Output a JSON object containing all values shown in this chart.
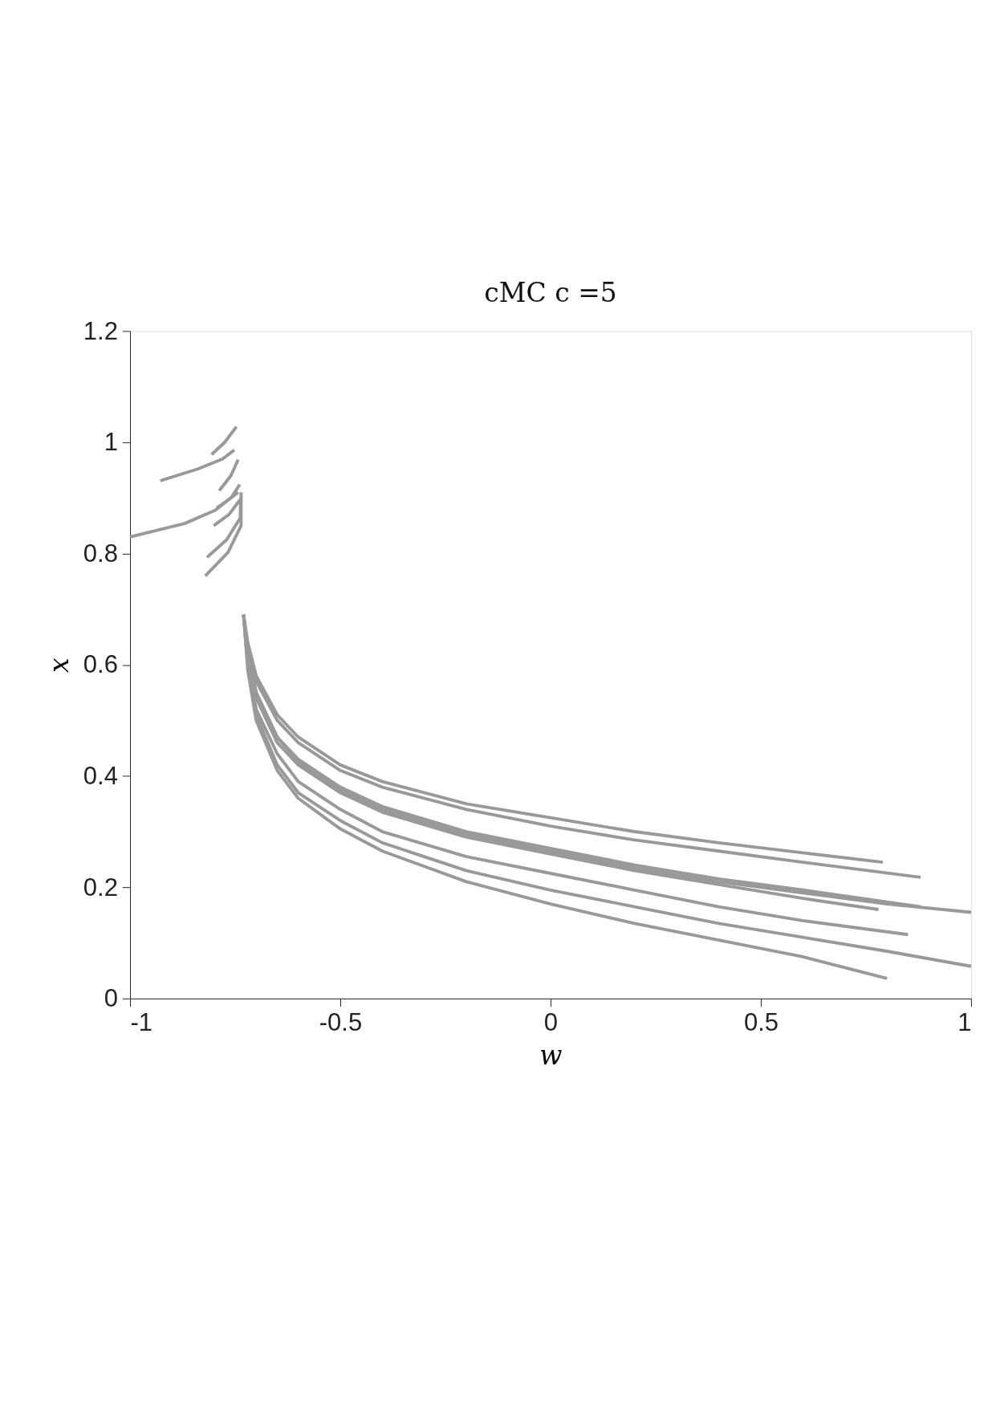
{
  "chart_data": {
    "type": "line",
    "title": "cMC c =5",
    "xlabel": "w",
    "ylabel": "x",
    "xlim": [
      -1,
      1
    ],
    "xticks": [
      -1,
      -0.5,
      0,
      0.5,
      1
    ],
    "ylim": [
      0,
      1.2
    ],
    "yticks": [
      0,
      0.2,
      0.4,
      0.6,
      0.8,
      1,
      1.2
    ],
    "grid": false,
    "legend": false,
    "line_style": "solid",
    "marker": "none",
    "series": [
      {
        "color": "#999999",
        "x": [
          -0.806,
          -0.775,
          -0.747
        ],
        "values": [
          0.978,
          1.0,
          1.028
        ]
      },
      {
        "color": "#999999",
        "x": [
          -0.928,
          -0.839,
          -0.78,
          -0.752
        ],
        "values": [
          0.931,
          0.952,
          0.97,
          0.986
        ]
      },
      {
        "color": "#999999",
        "x": [
          -1.0,
          -0.87,
          -0.797,
          -0.743
        ],
        "values": [
          0.83,
          0.854,
          0.878,
          0.91
        ]
      },
      {
        "color": "#999999",
        "x": [
          -0.788,
          -0.76,
          -0.743
        ],
        "values": [
          0.913,
          0.94,
          0.969
        ]
      },
      {
        "color": "#999999",
        "x": [
          -0.794,
          -0.76,
          -0.739
        ],
        "values": [
          0.882,
          0.9,
          0.924
        ]
      },
      {
        "color": "#999999",
        "x": [
          -0.801,
          -0.765,
          -0.739
        ],
        "values": [
          0.85,
          0.87,
          0.896
        ]
      },
      {
        "color": "#999999",
        "x": [
          -0.817,
          -0.77,
          -0.738,
          -0.737
        ],
        "values": [
          0.793,
          0.825,
          0.864,
          0.9
        ]
      },
      {
        "color": "#999999",
        "x": [
          -0.821,
          -0.767,
          -0.736,
          -0.736
        ],
        "values": [
          0.76,
          0.802,
          0.85,
          0.91
        ]
      },
      {
        "color": "#999999",
        "x": [
          -0.73,
          -0.72,
          -0.7,
          -0.65,
          -0.6,
          -0.5,
          -0.4,
          -0.2,
          0,
          0.2,
          0.4,
          0.6,
          0.79
        ],
        "values": [
          0.69,
          0.64,
          0.58,
          0.51,
          0.47,
          0.42,
          0.39,
          0.35,
          0.325,
          0.3,
          0.28,
          0.262,
          0.245
        ]
      },
      {
        "color": "#999999",
        "x": [
          -0.73,
          -0.72,
          -0.7,
          -0.65,
          -0.6,
          -0.5,
          -0.4,
          -0.2,
          0,
          0.2,
          0.4,
          0.6,
          0.88
        ],
        "values": [
          0.69,
          0.63,
          0.57,
          0.5,
          0.46,
          0.41,
          0.38,
          0.34,
          0.31,
          0.285,
          0.265,
          0.245,
          0.218
        ]
      },
      {
        "color": "#999999",
        "x": [
          -0.73,
          -0.72,
          -0.7,
          -0.65,
          -0.6,
          -0.5,
          -0.4,
          -0.2,
          0,
          0.2,
          0.4,
          0.6,
          0.88
        ],
        "values": [
          0.69,
          0.62,
          0.55,
          0.47,
          0.43,
          0.38,
          0.345,
          0.3,
          0.27,
          0.24,
          0.215,
          0.195,
          0.165
        ]
      },
      {
        "color": "#999999",
        "x": [
          -0.73,
          -0.72,
          -0.7,
          -0.65,
          -0.6,
          -0.5,
          -0.4,
          -0.2,
          0,
          0.2,
          0.4,
          0.6,
          0.8,
          1.0
        ],
        "values": [
          0.69,
          0.62,
          0.55,
          0.47,
          0.425,
          0.375,
          0.34,
          0.295,
          0.265,
          0.235,
          0.21,
          0.19,
          0.17,
          0.155
        ]
      },
      {
        "color": "#999999",
        "x": [
          -0.73,
          -0.72,
          -0.7,
          -0.65,
          -0.6,
          -0.5,
          -0.4,
          -0.2,
          0,
          0.2,
          0.4,
          0.6,
          0.78
        ],
        "values": [
          0.69,
          0.61,
          0.54,
          0.46,
          0.42,
          0.37,
          0.335,
          0.29,
          0.26,
          0.23,
          0.205,
          0.18,
          0.16
        ]
      },
      {
        "color": "#999999",
        "x": [
          -0.73,
          -0.72,
          -0.7,
          -0.65,
          -0.6,
          -0.5,
          -0.4,
          -0.2,
          0,
          0.2,
          0.4,
          0.6,
          0.85
        ],
        "values": [
          0.69,
          0.6,
          0.52,
          0.44,
          0.39,
          0.34,
          0.3,
          0.255,
          0.225,
          0.195,
          0.165,
          0.14,
          0.115
        ]
      },
      {
        "color": "#999999",
        "x": [
          -0.73,
          -0.72,
          -0.7,
          -0.65,
          -0.6,
          -0.5,
          -0.4,
          -0.2,
          0,
          0.2,
          0.4,
          0.6,
          0.8,
          1.0
        ],
        "values": [
          0.69,
          0.6,
          0.51,
          0.42,
          0.37,
          0.32,
          0.28,
          0.23,
          0.195,
          0.165,
          0.135,
          0.11,
          0.085,
          0.058
        ]
      },
      {
        "color": "#999999",
        "x": [
          -0.73,
          -0.72,
          -0.7,
          -0.65,
          -0.6,
          -0.5,
          -0.4,
          -0.2,
          0,
          0.2,
          0.4,
          0.6,
          0.8
        ],
        "values": [
          0.69,
          0.59,
          0.5,
          0.41,
          0.36,
          0.305,
          0.265,
          0.21,
          0.17,
          0.135,
          0.105,
          0.075,
          0.036
        ]
      }
    ]
  }
}
